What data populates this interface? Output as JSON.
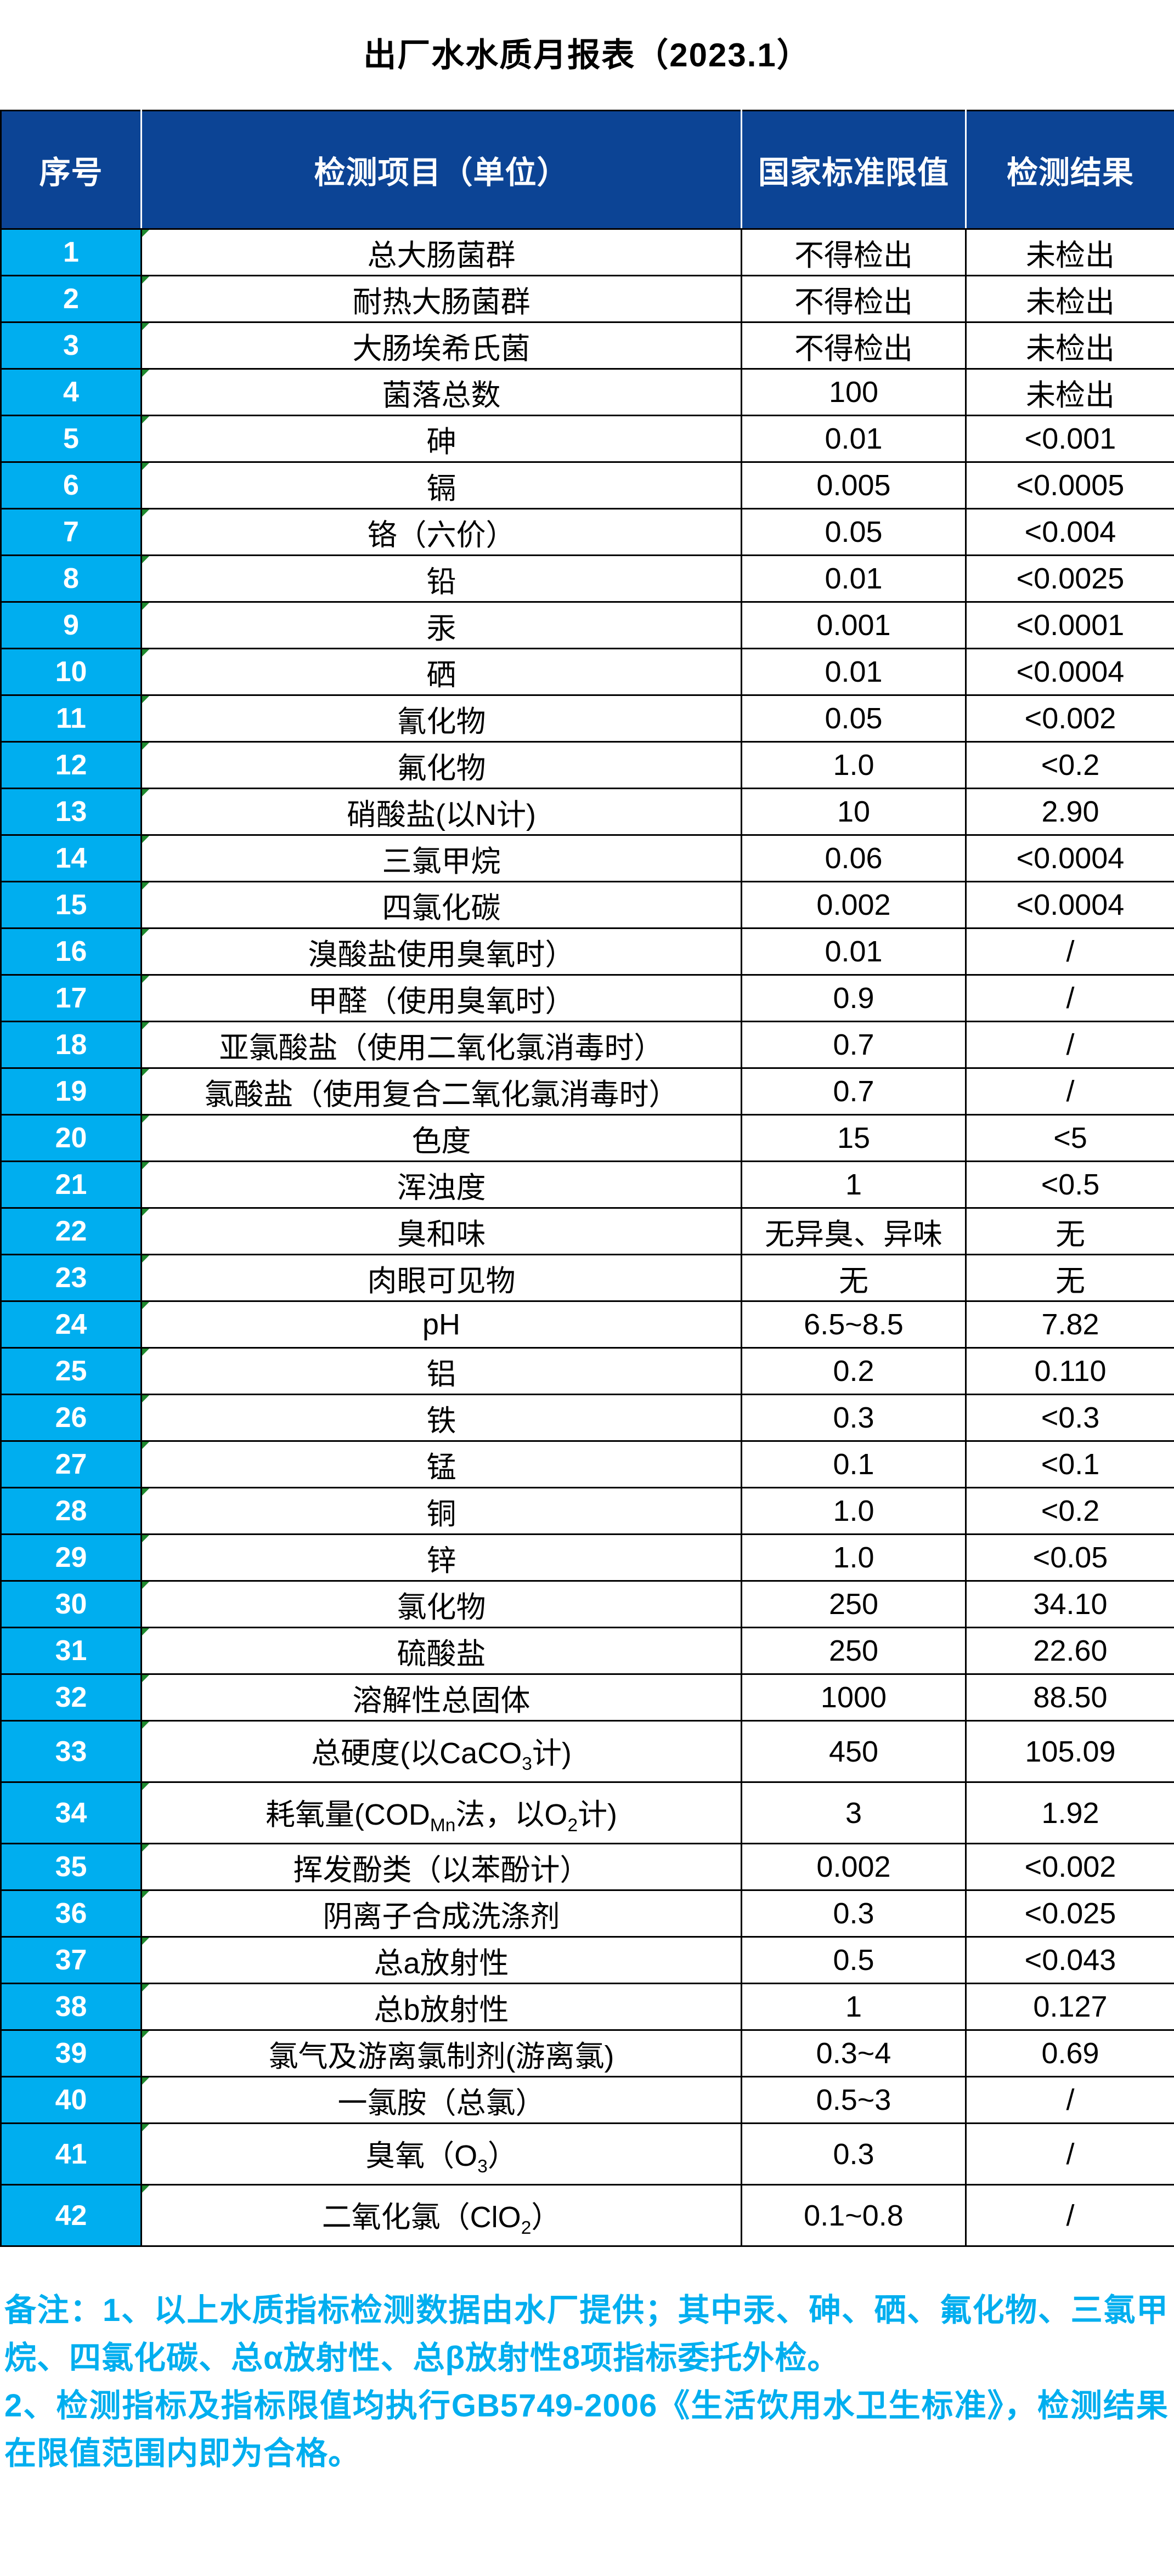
{
  "title": "出厂水水质月报表（2023.1）",
  "colors": {
    "header_bg": "#0C4495",
    "header_text": "#FFFFFF",
    "index_col_bg": "#00AEEF",
    "index_col_text": "#FFFFFF",
    "cell_text": "#000000",
    "grid_border": "#000000",
    "note_text": "#00AEEF",
    "corner_marker_green": "#1F8A2F",
    "title_text": "#000000",
    "page_bg": "#FFFFFF"
  },
  "table": {
    "headers": [
      "序号",
      "检测项目（单位）",
      "国家标准限值",
      "检测结果"
    ],
    "rows": [
      [
        "1",
        "总大肠菌群",
        "不得检出",
        "未检出"
      ],
      [
        "2",
        "耐热大肠菌群",
        "不得检出",
        "未检出"
      ],
      [
        "3",
        "大肠埃希氏菌",
        "不得检出",
        "未检出"
      ],
      [
        "4",
        "菌落总数",
        "100",
        "未检出"
      ],
      [
        "5",
        "砷",
        "0.01",
        "<0.001"
      ],
      [
        "6",
        "镉",
        "0.005",
        "<0.0005"
      ],
      [
        "7",
        "铬（六价）",
        "0.05",
        "<0.004"
      ],
      [
        "8",
        "铅",
        "0.01",
        "<0.0025"
      ],
      [
        "9",
        "汞",
        "0.001",
        "<0.0001"
      ],
      [
        "10",
        "硒",
        "0.01",
        "<0.0004"
      ],
      [
        "11",
        "氰化物",
        "0.05",
        "<0.002"
      ],
      [
        "12",
        "氟化物",
        "1.0",
        "<0.2"
      ],
      [
        "13",
        "硝酸盐(以N计)",
        "10",
        "2.90"
      ],
      [
        "14",
        "三氯甲烷",
        "0.06",
        "<0.0004"
      ],
      [
        "15",
        "四氯化碳",
        "0.002",
        "<0.0004"
      ],
      [
        "16",
        "溴酸盐使用臭氧时）",
        "0.01",
        "/"
      ],
      [
        "17",
        "甲醛（使用臭氧时）",
        "0.9",
        "/"
      ],
      [
        "18",
        "亚氯酸盐（使用二氧化氯消毒时）",
        "0.7",
        "/"
      ],
      [
        "19",
        "氯酸盐（使用复合二氧化氯消毒时）",
        "0.7",
        "/"
      ],
      [
        "20",
        "色度",
        "15",
        "<5"
      ],
      [
        "21",
        "浑浊度",
        "1",
        "<0.5"
      ],
      [
        "22",
        "臭和味",
        "无异臭、异味",
        "无"
      ],
      [
        "23",
        "肉眼可见物",
        "无",
        "无"
      ],
      [
        "24",
        "pH",
        "6.5~8.5",
        "7.82"
      ],
      [
        "25",
        "铝",
        "0.2",
        "0.110"
      ],
      [
        "26",
        "铁",
        "0.3",
        "<0.3"
      ],
      [
        "27",
        "锰",
        "0.1",
        "<0.1"
      ],
      [
        "28",
        "铜",
        "1.0",
        "<0.2"
      ],
      [
        "29",
        "锌",
        "1.0",
        "<0.05"
      ],
      [
        "30",
        "氯化物",
        "250",
        "34.10"
      ],
      [
        "31",
        "硫酸盐",
        "250",
        "22.60"
      ],
      [
        "32",
        "溶解性总固体",
        "1000",
        "88.50"
      ],
      [
        "33",
        "总硬度(以CaCO<sub>3</sub>计)",
        "450",
        "105.09"
      ],
      [
        "34",
        "耗氧量(COD<sub>Mn</sub>法，以O<sub>2</sub>计)",
        "3",
        "1.92"
      ],
      [
        "35",
        "挥发酚类（以苯酚计）",
        "0.002",
        "<0.002"
      ],
      [
        "36",
        "阴离子合成洗涤剂",
        "0.3",
        "<0.025"
      ],
      [
        "37",
        "总a放射性",
        "0.5",
        "<0.043"
      ],
      [
        "38",
        "总b放射性",
        "1",
        "0.127"
      ],
      [
        "39",
        "氯气及游离氯制剂(游离氯)",
        "0.3~4",
        "0.69"
      ],
      [
        "40",
        "一氯胺（总氯）",
        "0.5~3",
        "/"
      ],
      [
        "41",
        "臭氧（O<sub>3</sub>）",
        "0.3",
        "/"
      ],
      [
        "42",
        "二氧化氯（ClO<sub>2</sub>）",
        "0.1~0.8",
        "/"
      ]
    ]
  },
  "notes": [
    "备注：1、以上水质指标检测数据由水厂提供；其中汞、砷、硒、氟化物、三氯甲烷、四氯化碳、总α放射性、总β放射性8项指标委托外检。",
    "2、检测指标及指标限值均执行GB5749-2006《生活饮用水卫生标准》，检测结果在限值范围内即为合格。"
  ]
}
